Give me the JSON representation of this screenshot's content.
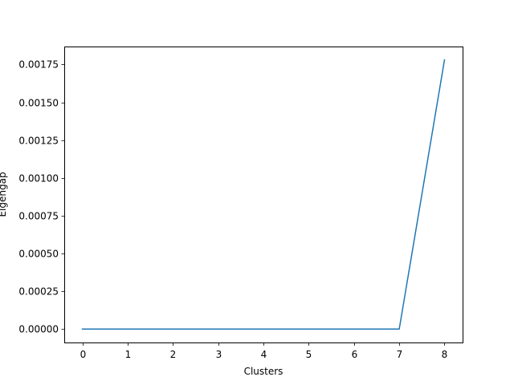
{
  "chart_data": {
    "type": "line",
    "title": "",
    "xlabel": "Clusters",
    "ylabel": "Eigengap",
    "x": [
      0,
      1,
      2,
      3,
      4,
      5,
      6,
      7,
      8
    ],
    "series": [
      {
        "values": [
          0,
          0,
          0,
          0,
          0,
          0,
          0,
          0,
          0.00178
        ],
        "color": "#1f77b4"
      }
    ],
    "xlim": [
      -0.4,
      8.4
    ],
    "ylim": [
      -8.9e-05,
      0.001869
    ],
    "xticks": [
      0,
      1,
      2,
      3,
      4,
      5,
      6,
      7,
      8
    ],
    "xtick_labels": [
      "0",
      "1",
      "2",
      "3",
      "4",
      "5",
      "6",
      "7",
      "8"
    ],
    "yticks": [
      0,
      0.00025,
      0.0005,
      0.00075,
      0.001,
      0.00125,
      0.0015,
      0.00175
    ],
    "ytick_labels": [
      "0.00000",
      "0.00025",
      "0.00050",
      "0.00075",
      "0.00100",
      "0.00125",
      "0.00150",
      "0.00175"
    ],
    "grid": false,
    "legend": "none"
  }
}
